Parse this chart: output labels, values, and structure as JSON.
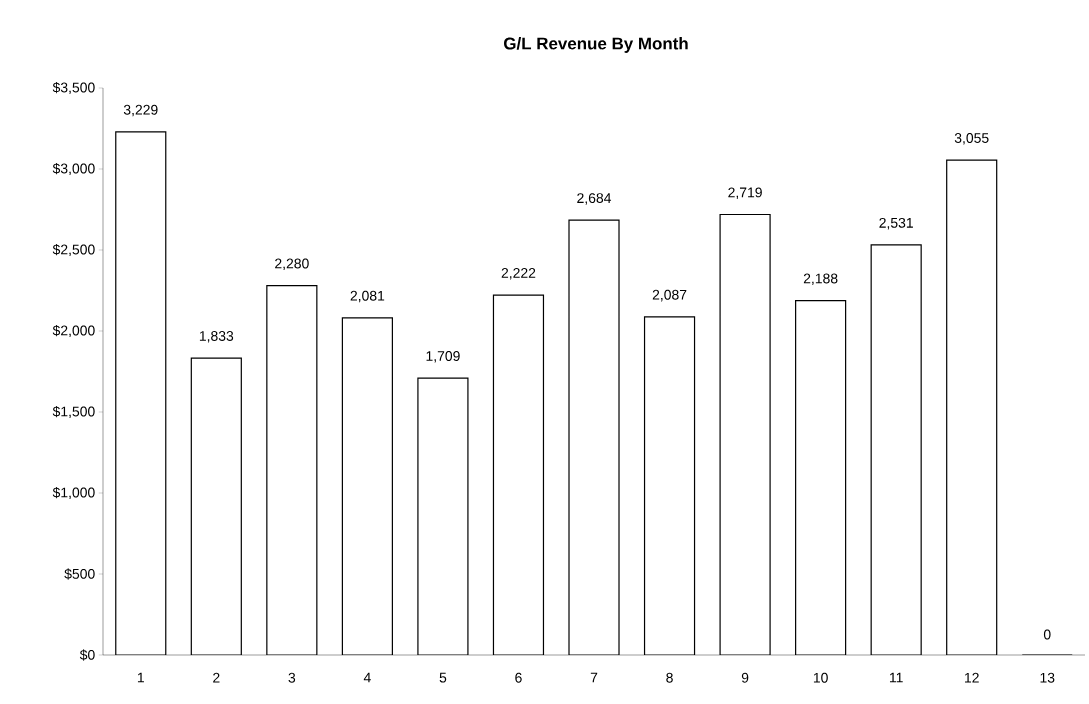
{
  "chart_data": {
    "type": "bar",
    "title": "G/L Revenue By Month",
    "categories": [
      "1",
      "2",
      "3",
      "4",
      "5",
      "6",
      "7",
      "8",
      "9",
      "10",
      "11",
      "12",
      "13"
    ],
    "values": [
      3229,
      1833,
      2280,
      2081,
      1709,
      2222,
      2684,
      2087,
      2719,
      2188,
      2531,
      3055,
      0
    ],
    "value_labels": [
      "3,229",
      "1,833",
      "2,280",
      "2,081",
      "1,709",
      "2,222",
      "2,684",
      "2,087",
      "2,719",
      "2,188",
      "2,531",
      "3,055",
      "0"
    ],
    "color": "#ffffff",
    "ylim": [
      0,
      3500
    ],
    "yticks": [
      {
        "value": 0,
        "label": "$0"
      },
      {
        "value": 500,
        "label": "$500"
      },
      {
        "value": 1000,
        "label": "$1,000"
      },
      {
        "value": 1500,
        "label": "$1,500"
      },
      {
        "value": 2000,
        "label": "$2,000"
      },
      {
        "value": 2500,
        "label": "$2,500"
      },
      {
        "value": 3000,
        "label": "$3,000"
      },
      {
        "value": 3500,
        "label": "$3,500"
      }
    ],
    "grid": false
  }
}
